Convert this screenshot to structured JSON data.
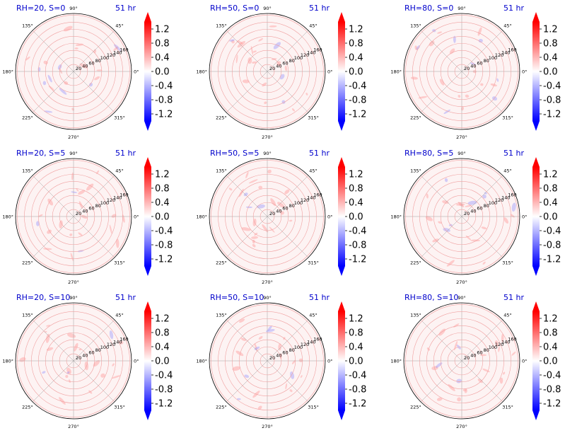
{
  "chart_data": {
    "type": "polar-heatmap",
    "time_label": "51 hr",
    "panels": [
      {
        "title": "RH=20, S=0"
      },
      {
        "title": "RH=50, S=0"
      },
      {
        "title": "RH=80, S=0"
      },
      {
        "title": "RH=20, S=5"
      },
      {
        "title": "RH=50, S=5"
      },
      {
        "title": "RH=80, S=5"
      },
      {
        "title": "RH=20, S=10"
      },
      {
        "title": "RH=50, S=10"
      },
      {
        "title": "RH=80, S=10"
      }
    ],
    "angular_ticks": [
      "0°",
      "45°",
      "90°",
      "135°",
      "180°",
      "225°",
      "270°",
      "315°"
    ],
    "radial_ticks": [
      "20",
      "40",
      "60",
      "80",
      "100",
      "120",
      "140",
      "160"
    ],
    "colorbar": {
      "cmap": "bwr",
      "min": -1.4,
      "max": 1.4,
      "extend": "both",
      "ticks": [
        "1.2",
        "0.8",
        "0.4",
        "0.0",
        "-0.4",
        "-0.8",
        "-1.2"
      ]
    }
  },
  "colors": {
    "title": "#0000cc",
    "grid_red": "#f0a0a0",
    "grid_gray": "#a0a0a0",
    "background_tint": "#fdf3f3"
  }
}
